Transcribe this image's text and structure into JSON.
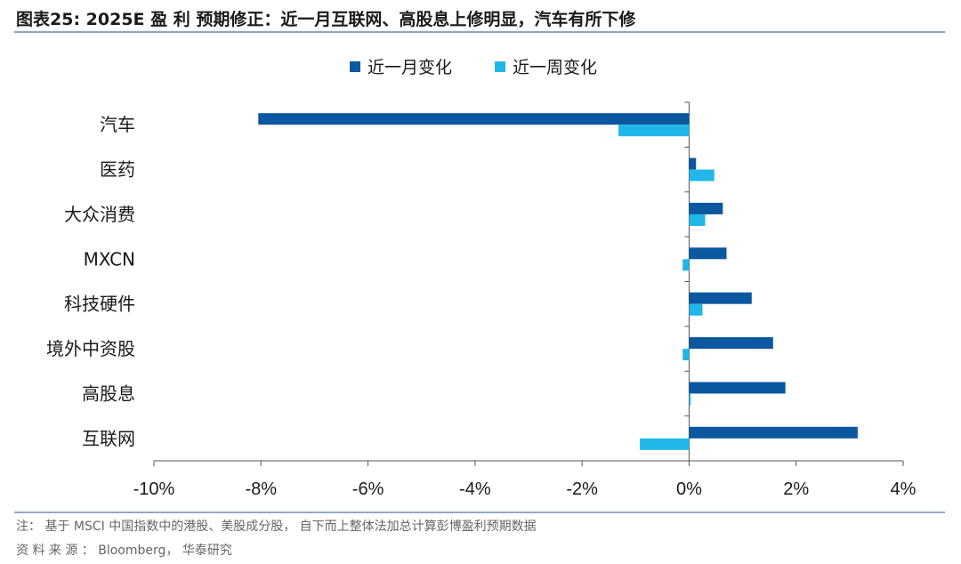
{
  "figure": {
    "title": "图表25:  2025E 盈 利 预期修正：近一月互联网、高股息上修明显，汽车有所下修",
    "note": "注：  基于 MSCI 中国指数中的港股、美股成分股，  自下而上整体法加总计算彭博盈利预期数据",
    "source": "资 料 来 源 ：  Bloomberg，  华泰研究"
  },
  "chart_data": {
    "type": "bar",
    "orientation": "horizontal",
    "categories": [
      "汽车",
      "医药",
      "大众消费",
      "MXCN",
      "科技硬件",
      "境外中资股",
      "高股息",
      "互联网"
    ],
    "series": [
      {
        "name": "近一月变化",
        "color": "#0c58a0",
        "values": [
          -8.05,
          0.13,
          0.63,
          0.7,
          1.17,
          1.57,
          1.8,
          3.15
        ]
      },
      {
        "name": "近一周变化",
        "color": "#21b6e8",
        "values": [
          -1.32,
          0.47,
          0.3,
          -0.12,
          0.25,
          -0.12,
          0.03,
          -0.92
        ]
      }
    ],
    "xlim": [
      -10,
      4
    ],
    "xticks": [
      -10,
      -8,
      -6,
      -4,
      -2,
      0,
      2,
      4
    ],
    "xtick_labels": [
      "-10%",
      "-8%",
      "-6%",
      "-4%",
      "-2%",
      "0%",
      "2%",
      "4%"
    ],
    "legend_position": "top-center",
    "grid": false
  }
}
